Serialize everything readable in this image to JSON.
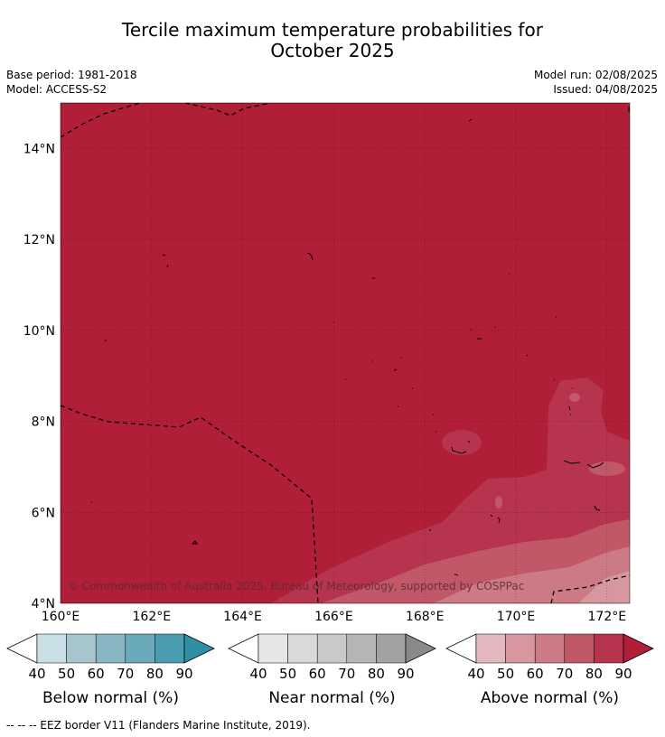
{
  "title": {
    "line1": "Tercile maximum temperature probabilities for",
    "line2": "October 2025"
  },
  "meta": {
    "base_period": "Base period: 1981-2018",
    "model": "Model: ACCESS-S2",
    "model_run": "Model run: 02/08/2025",
    "issued": "Issued: 04/08/2025"
  },
  "map": {
    "lat_labels": [
      "14°N",
      "12°N",
      "10°N",
      "8°N",
      "6°N",
      "4°N"
    ],
    "lon_labels": [
      "160°E",
      "162°E",
      "164°E",
      "166°E",
      "168°E",
      "170°E",
      "172°E"
    ],
    "copyright": "© Commonwealth of Australia 2025, Bureau of Meteorology, supported by COSPPac",
    "base_color": "#b01e38"
  },
  "colorbars": [
    {
      "label": "Below normal (%)",
      "ticks": [
        "40",
        "50",
        "60",
        "70",
        "80",
        "90"
      ],
      "colors": [
        "#ffffff",
        "#c7dfe5",
        "#a6c5cc",
        "#88b6c2",
        "#6aa9b9",
        "#4a9cb0",
        "#2f8fa3"
      ]
    },
    {
      "label": "Near normal (%)",
      "ticks": [
        "40",
        "50",
        "60",
        "70",
        "80",
        "90"
      ],
      "colors": [
        "#ffffff",
        "#e6e6e6",
        "#d9d9d9",
        "#c9c9c9",
        "#b5b5b5",
        "#a2a2a2",
        "#8a8a8a"
      ]
    },
    {
      "label": "Above normal (%)",
      "ticks": [
        "40",
        "50",
        "60",
        "70",
        "80",
        "90"
      ],
      "colors": [
        "#ffffff",
        "#e2b8be",
        "#d6979f",
        "#cc7a85",
        "#c05868",
        "#b6344d",
        "#b01e38"
      ]
    }
  ],
  "footnote": "--  --  -- EEZ border V11 (Flanders Marine Institute, 2019)."
}
